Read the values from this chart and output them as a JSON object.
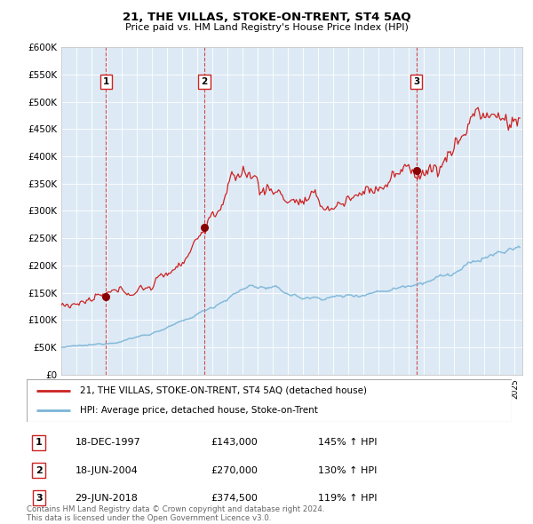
{
  "title": "21, THE VILLAS, STOKE-ON-TRENT, ST4 5AQ",
  "subtitle": "Price paid vs. HM Land Registry's House Price Index (HPI)",
  "hpi_line_color": "#7ab5d8",
  "price_line_color": "#cc2222",
  "dot_color": "#880000",
  "vline_color": "#cc2222",
  "plot_bg": "#ddeaf5",
  "sales_year_nums": [
    1997.96,
    2004.46,
    2018.49
  ],
  "sale_dates": [
    "18-DEC-1997",
    "18-JUN-2004",
    "29-JUN-2018"
  ],
  "sale_prices": [
    143000,
    270000,
    374500
  ],
  "sale_pcts": [
    "145%",
    "130%",
    "119%"
  ],
  "legend_line1": "21, THE VILLAS, STOKE-ON-TRENT, ST4 5AQ (detached house)",
  "legend_line2": "HPI: Average price, detached house, Stoke-on-Trent",
  "footer": "Contains HM Land Registry data © Crown copyright and database right 2024.\nThis data is licensed under the Open Government Licence v3.0.",
  "xlim": [
    1995.0,
    2025.5
  ],
  "ylim": [
    0,
    600000
  ],
  "yticks": [
    0,
    50000,
    100000,
    150000,
    200000,
    250000,
    300000,
    350000,
    400000,
    450000,
    500000,
    550000,
    600000
  ]
}
